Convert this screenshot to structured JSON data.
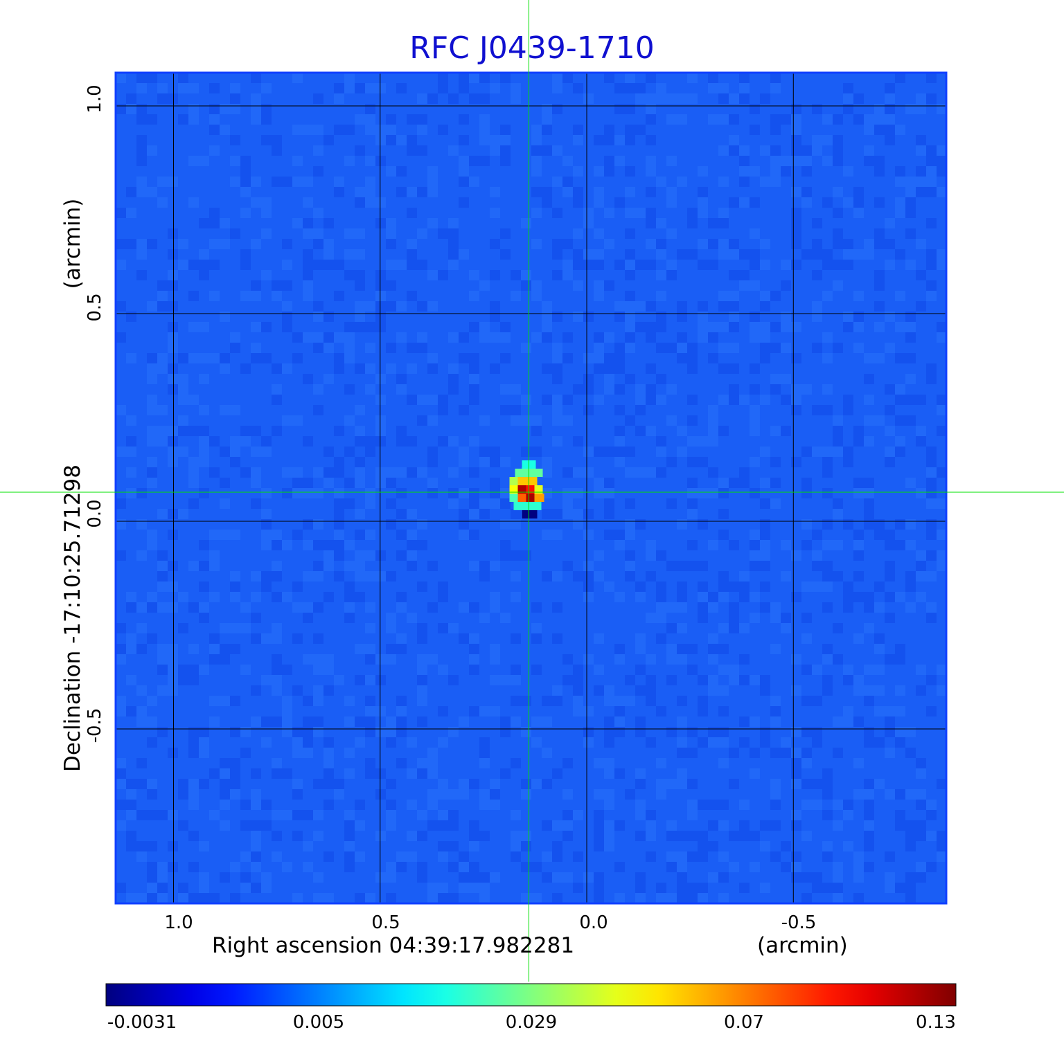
{
  "chart_data": {
    "type": "heatmap",
    "title": "RFC J0439-1710",
    "xlabel": "Right ascension  04:39:17.982281",
    "xunit": "(arcmin)",
    "ylabel": "Declination  -17:10:25.71298",
    "yunit": "(arcmin)",
    "x_ticks": [
      1.0,
      0.5,
      0.0,
      -0.5
    ],
    "x_tick_labels": [
      "1.0",
      "0.5",
      "0.0",
      "-0.5"
    ],
    "y_ticks": [
      1.0,
      0.5,
      0.0,
      -0.5
    ],
    "y_tick_labels": [
      "1.0",
      "0.5",
      "0.0",
      "-0.5"
    ],
    "xlim": [
      1.14,
      -0.87
    ],
    "ylim": [
      -0.92,
      1.08
    ],
    "grid": true,
    "crosshair": {
      "x": 0.14,
      "y": 0.07
    },
    "peak": {
      "x": 0.14,
      "y": 0.07,
      "value": 0.13
    },
    "background_value": 0.001,
    "colorbar": {
      "ticks": [
        -0.0031,
        0.005,
        0.029,
        0.07,
        0.13
      ],
      "tick_labels": [
        "-0.0031",
        "0.005",
        "0.029",
        "0.07",
        "0.13"
      ],
      "colormap": "jet"
    },
    "colors": {
      "title": "#1010d0",
      "grid": "#000000",
      "crosshair": "#00e000",
      "frame": "#1040ff"
    }
  }
}
